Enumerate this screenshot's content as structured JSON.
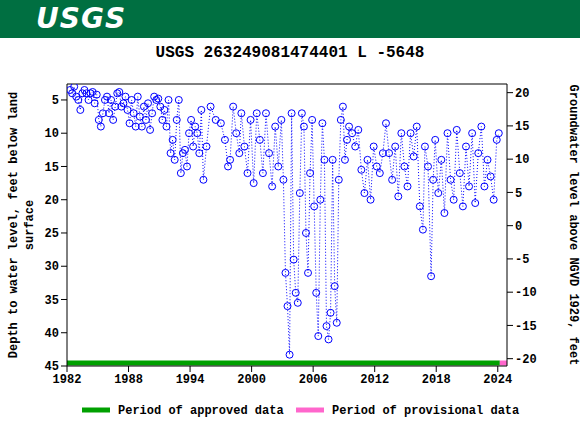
{
  "header": "USGS",
  "chart_data": {
    "type": "line",
    "title": "USGS 263249081474401 L  -5648",
    "y_label": "Depth to water level, feet below land surface",
    "y2_label": "Groundwater level above NGVD 1929, feet",
    "xlim": [
      1982,
      2024.9
    ],
    "xticks": [
      1982,
      1988,
      1994,
      2000,
      2006,
      2012,
      2018,
      2024
    ],
    "ylim": [
      45,
      2.6
    ],
    "yticks": [
      5,
      10,
      15,
      20,
      25,
      30,
      35,
      40,
      45
    ],
    "y2lim": [
      -21.1,
      21.3
    ],
    "y2ticks": [
      -20,
      -15,
      -10,
      -5,
      0,
      5,
      10,
      15,
      20
    ],
    "color": "#0000ff",
    "marker": "circle",
    "line_style": "dotted",
    "x": [
      1982.3,
      1982.5,
      1982.7,
      1982.9,
      1983.1,
      1983.3,
      1983.5,
      1983.7,
      1983.9,
      1984.1,
      1984.3,
      1984.5,
      1984.7,
      1984.9,
      1985.1,
      1985.3,
      1985.5,
      1985.7,
      1985.9,
      1986.1,
      1986.3,
      1986.5,
      1986.7,
      1986.9,
      1987.1,
      1987.3,
      1987.5,
      1987.7,
      1987.9,
      1988.1,
      1988.3,
      1988.5,
      1988.7,
      1988.9,
      1989.1,
      1989.3,
      1989.5,
      1989.7,
      1989.9,
      1990.1,
      1990.3,
      1990.5,
      1990.7,
      1990.9,
      1991.1,
      1991.3,
      1991.5,
      1991.7,
      1991.9,
      1992.1,
      1992.3,
      1992.5,
      1992.7,
      1992.9,
      1993.1,
      1993.3,
      1993.5,
      1993.7,
      1993.9,
      1994.1,
      1994.3,
      1994.5,
      1994.7,
      1994.9,
      1995.1,
      1995.3,
      1995.6,
      1996.0,
      1996.5,
      1997.0,
      1997.4,
      1997.7,
      1997.9,
      1998.2,
      1998.5,
      1998.8,
      1999.0,
      1999.3,
      1999.6,
      1999.9,
      2000.2,
      2000.5,
      2000.8,
      2001.1,
      2001.4,
      2001.7,
      2002.0,
      2002.3,
      2002.6,
      2002.9,
      2003.1,
      2003.3,
      2003.5,
      2003.7,
      2003.9,
      2004.1,
      2004.3,
      2004.5,
      2004.7,
      2004.9,
      2005.1,
      2005.3,
      2005.5,
      2005.7,
      2005.9,
      2006.1,
      2006.3,
      2006.5,
      2006.7,
      2006.9,
      2007.1,
      2007.3,
      2007.5,
      2007.7,
      2007.9,
      2008.1,
      2008.3,
      2008.5,
      2008.7,
      2008.9,
      2009.1,
      2009.3,
      2009.5,
      2009.8,
      2010.1,
      2010.4,
      2010.7,
      2011.0,
      2011.3,
      2011.6,
      2011.9,
      2012.2,
      2012.5,
      2012.8,
      2013.1,
      2013.4,
      2013.7,
      2014.0,
      2014.3,
      2014.6,
      2014.9,
      2015.2,
      2015.5,
      2015.8,
      2016.1,
      2016.4,
      2016.7,
      2016.9,
      2017.2,
      2017.5,
      2017.7,
      2017.9,
      2018.2,
      2018.5,
      2018.8,
      2019.1,
      2019.4,
      2019.7,
      2020.0,
      2020.3,
      2020.6,
      2020.9,
      2021.2,
      2021.5,
      2021.8,
      2022.1,
      2022.4,
      2022.7,
      2023.0,
      2023.3,
      2023.6,
      2023.9,
      2024.1
    ],
    "values": [
      3.5,
      4,
      3,
      4.5,
      5,
      6.5,
      4,
      3.5,
      4,
      5,
      4,
      3.8,
      5.5,
      4.2,
      8,
      9,
      7,
      5,
      4.5,
      7,
      5,
      8,
      6,
      4,
      3.8,
      6,
      5.5,
      4.5,
      6.5,
      8.5,
      5,
      7,
      9,
      4.5,
      7.5,
      9,
      6,
      8,
      5.5,
      9.5,
      7,
      4.5,
      5,
      4.8,
      6,
      8,
      6.5,
      9,
      5,
      13,
      11,
      14,
      8,
      5,
      16,
      13,
      12.5,
      15,
      10,
      8,
      12,
      9,
      10,
      13,
      6.5,
      17,
      12,
      6,
      8,
      8.5,
      11,
      15,
      14,
      6,
      10,
      13,
      7,
      12,
      16,
      8,
      17.5,
      7,
      11,
      16,
      7,
      13,
      18,
      9,
      15,
      8,
      17,
      31,
      36,
      43.3,
      7,
      29,
      34,
      35.5,
      19,
      7,
      9,
      25,
      31,
      16,
      8,
      21,
      34,
      40.5,
      20,
      8.5,
      14,
      39,
      41,
      37,
      14,
      33,
      38.5,
      17,
      8,
      6,
      14,
      11,
      9,
      10,
      12,
      9.5,
      15.5,
      19,
      14,
      20,
      12,
      15,
      16,
      13,
      8.5,
      13,
      17,
      12,
      19.5,
      10,
      15,
      18,
      10,
      13.5,
      9,
      21,
      24.5,
      12,
      15,
      31.5,
      17,
      11,
      19,
      14,
      22,
      10,
      17,
      20,
      9.5,
      16,
      21,
      12,
      18,
      10,
      20.5,
      13,
      9,
      18,
      14,
      16.5,
      20,
      11,
      10
    ],
    "periods": [
      {
        "name": "Period of approved data",
        "color": "#00a000",
        "range": [
          1982,
          2024.2
        ]
      },
      {
        "name": "Period of provisional data",
        "color": "#ff66cc",
        "range": [
          2024.2,
          2024.9
        ]
      }
    ]
  }
}
